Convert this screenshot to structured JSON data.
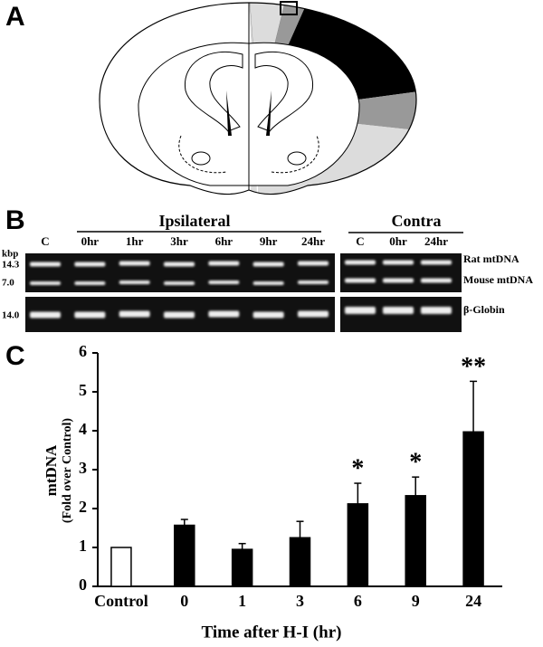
{
  "panels": [
    "A",
    "B",
    "C"
  ],
  "gel": {
    "ipsilateral_header": "Ipsilateral",
    "contra_header": "Contra",
    "ipsilateral_lanes": [
      "C",
      "0hr",
      "1hr",
      "3hr",
      "6hr",
      "9hr",
      "24hr"
    ],
    "contra_lanes": [
      "C",
      "0hr",
      "24hr"
    ],
    "size_unit": "kbp",
    "sizes": [
      "14.3",
      "7.0",
      "14.0"
    ],
    "band_labels": [
      "Rat mtDNA",
      "Mouse mtDNA",
      "β-Globin"
    ]
  },
  "chart_data": {
    "type": "bar",
    "x_label": "Time after H-I (hr)",
    "y_label": [
      "mtDNA",
      "(Fold over Control)"
    ],
    "categories": [
      "Control",
      "0",
      "1",
      "3",
      "6",
      "9",
      "24"
    ],
    "values": [
      1.0,
      1.57,
      0.95,
      1.25,
      2.12,
      2.33,
      3.97
    ],
    "errors": [
      null,
      0.15,
      0.15,
      0.42,
      0.53,
      0.48,
      1.3
    ],
    "colors": [
      "#ffffff",
      "#000000",
      "#000000",
      "#000000",
      "#000000",
      "#000000",
      "#000000"
    ],
    "significance": [
      null,
      null,
      null,
      null,
      "*",
      "*",
      "**"
    ],
    "ylim": [
      0,
      6
    ],
    "yticks": [
      0,
      1,
      2,
      3,
      4,
      5,
      6
    ]
  }
}
